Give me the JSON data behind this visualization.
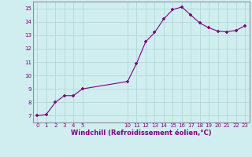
{
  "x": [
    0,
    1,
    2,
    3,
    4,
    5,
    10,
    11,
    12,
    13,
    14,
    15,
    16,
    17,
    18,
    19,
    20,
    21,
    22,
    23
  ],
  "y": [
    7.0,
    7.1,
    8.0,
    8.5,
    8.5,
    9.0,
    9.55,
    10.9,
    12.5,
    13.2,
    14.2,
    14.9,
    15.1,
    14.5,
    13.9,
    13.55,
    13.3,
    13.25,
    13.35,
    13.7
  ],
  "line_color": "#800080",
  "marker_color": "#800080",
  "bg_color": "#d0eef0",
  "grid_color": "#b0d8d8",
  "xlabel": "Windchill (Refroidissement éolien,°C)",
  "xlabel_color": "#800080",
  "tick_color": "#800080",
  "ylim": [
    6.5,
    15.5
  ],
  "xlim": [
    -0.5,
    23.5
  ],
  "yticks": [
    7,
    8,
    9,
    10,
    11,
    12,
    13,
    14,
    15
  ],
  "xticks": [
    0,
    1,
    2,
    3,
    4,
    5,
    10,
    11,
    12,
    13,
    14,
    15,
    16,
    17,
    18,
    19,
    20,
    21,
    22,
    23
  ],
  "spine_color": "#9090a0"
}
